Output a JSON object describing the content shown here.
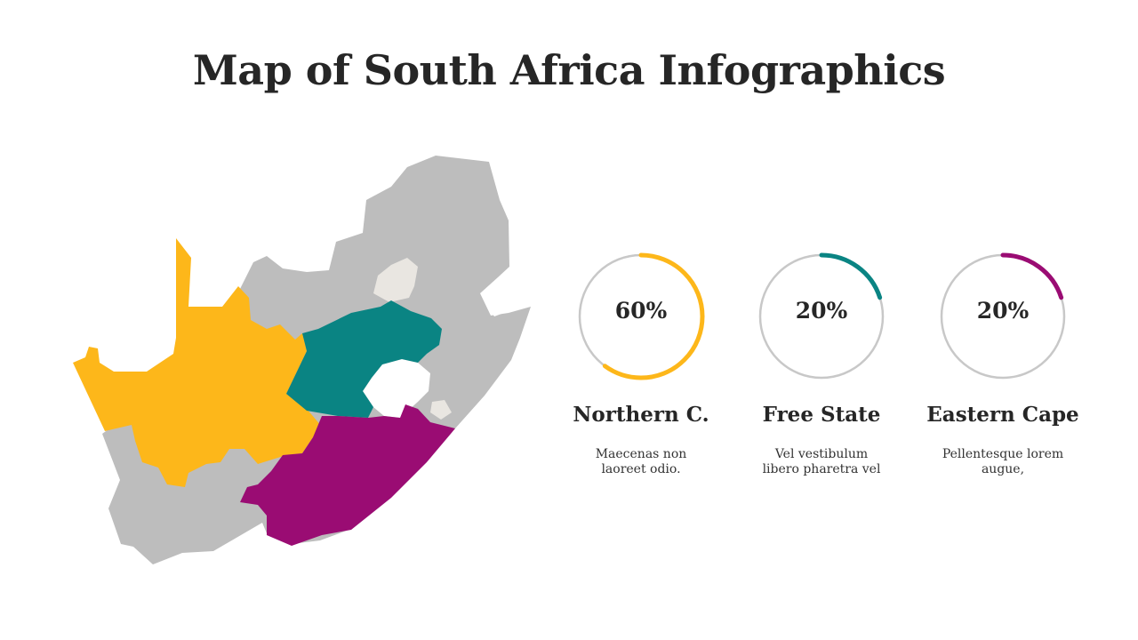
{
  "title": "Map of South Africa Infographics",
  "colors": {
    "yellow": "#FDB71A",
    "teal": "#0A8483",
    "purple": "#9A0C73",
    "grey": "#BDBDBD",
    "light": "#E9E6E1",
    "ring_track": "#C8C8C8"
  },
  "map": {
    "highlighted_regions": [
      {
        "name": "Northern C.",
        "color": "yellow"
      },
      {
        "name": "Free State",
        "color": "teal"
      },
      {
        "name": "Eastern Cape",
        "color": "purple"
      }
    ]
  },
  "stats": [
    {
      "percent_label": "60%",
      "value": 0.6,
      "color": "#FDB71A",
      "name": "Northern C.",
      "desc_line1": "Maecenas non",
      "desc_line2": "laoreet odio."
    },
    {
      "percent_label": "20%",
      "value": 0.2,
      "color": "#0A8483",
      "name": "Free State",
      "desc_line1": "Vel vestibulum",
      "desc_line2": "libero pharetra vel"
    },
    {
      "percent_label": "20%",
      "value": 0.2,
      "color": "#9A0C73",
      "name": "Eastern Cape",
      "desc_line1": "Pellentesque lorem",
      "desc_line2": "augue,"
    }
  ]
}
